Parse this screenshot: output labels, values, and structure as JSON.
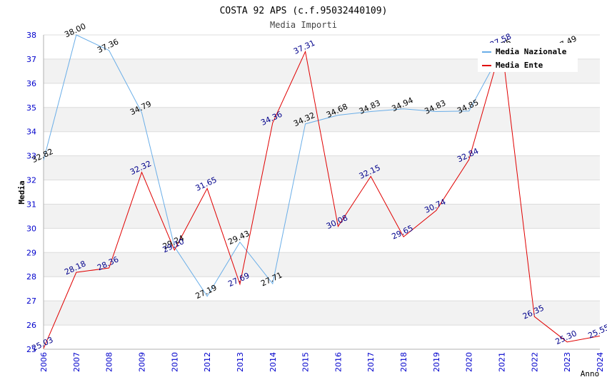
{
  "chart_data": {
    "type": "line",
    "title": "COSTA 92 APS (c.f.95032440109)",
    "subtitle": "Media Importi",
    "xlabel": "Anno",
    "ylabel": "Media",
    "ylim": [
      25,
      38
    ],
    "yticks": [
      "25",
      "26",
      "27",
      "28",
      "29",
      "30",
      "31",
      "32",
      "33",
      "34",
      "35",
      "36",
      "37",
      "38"
    ],
    "categories": [
      "2006",
      "2007",
      "2008",
      "2009",
      "2010",
      "2012",
      "2013",
      "2014",
      "2015",
      "2016",
      "2017",
      "2018",
      "2019",
      "2020",
      "2021",
      "2022",
      "2023",
      "2024"
    ],
    "grid": true,
    "legend_position": "top-right",
    "series": [
      {
        "name": "Media Nazionale",
        "color": "#6aaee8",
        "label_color": "#000000",
        "values": [
          32.82,
          38.0,
          37.36,
          34.79,
          29.24,
          27.19,
          29.43,
          27.71,
          34.32,
          34.68,
          34.83,
          34.94,
          34.83,
          34.85,
          37.35,
          null,
          37.49,
          null
        ],
        "labels": [
          "32.82",
          "38.00",
          "37.36",
          "34.79",
          "29.24",
          "27.19",
          "29.43",
          "27.71",
          "34.32",
          "34.68",
          "34.83",
          "34.94",
          "34.83",
          "34.85",
          "37.35",
          "",
          "37.49",
          ""
        ]
      },
      {
        "name": "Media Ente",
        "color": "#e00000",
        "label_color": "#00008b",
        "values": [
          25.03,
          28.18,
          28.36,
          32.32,
          29.1,
          31.65,
          27.69,
          34.36,
          37.31,
          30.08,
          32.15,
          29.65,
          30.74,
          32.84,
          37.58,
          26.35,
          25.3,
          25.55
        ],
        "labels": [
          "25.03",
          "28.18",
          "28.36",
          "32.32",
          "29.10",
          "31.65",
          "27.69",
          "34.36",
          "37.31",
          "30.08",
          "32.15",
          "29.65",
          "30.74",
          "32.84",
          "37.58",
          "26.35",
          "25.30",
          "25.55"
        ]
      }
    ]
  }
}
